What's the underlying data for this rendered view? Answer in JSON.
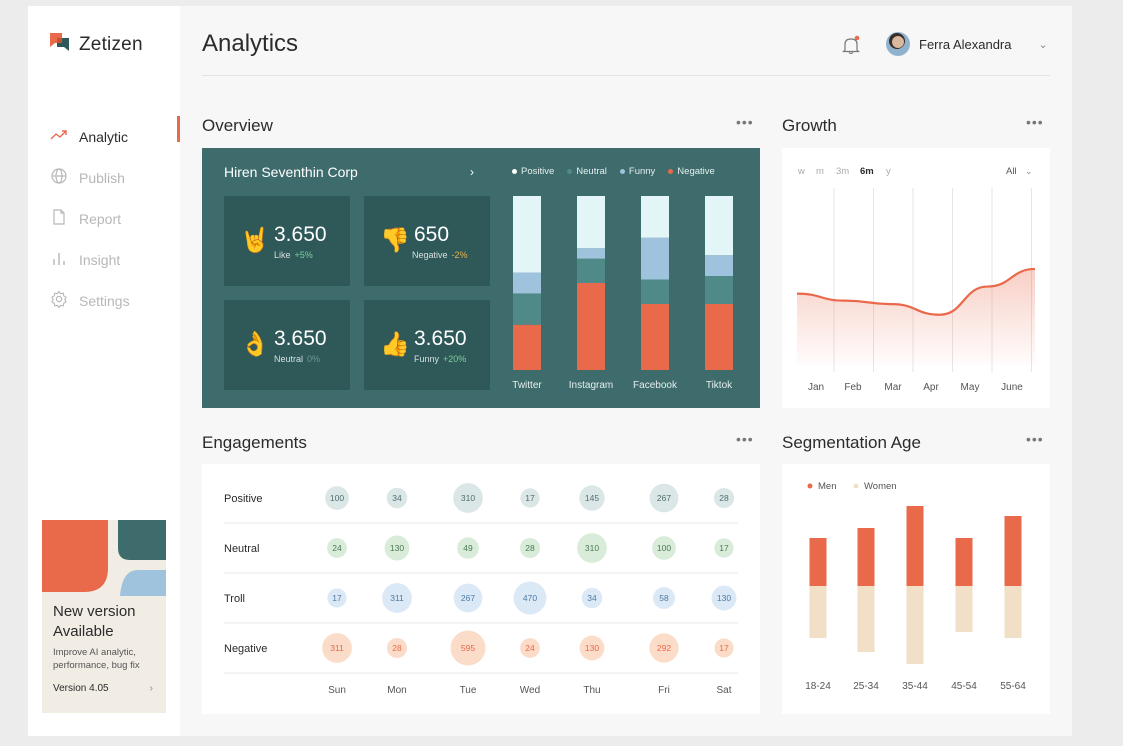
{
  "brand": {
    "name": "Zetizen"
  },
  "nav": [
    {
      "label": "Analytic",
      "icon": "trend-icon",
      "active": true
    },
    {
      "label": "Publish",
      "icon": "globe-icon",
      "active": false
    },
    {
      "label": "Report",
      "icon": "document-icon",
      "active": false
    },
    {
      "label": "Insight",
      "icon": "bar-chart-icon",
      "active": false
    },
    {
      "label": "Settings",
      "icon": "gear-icon",
      "active": false
    }
  ],
  "promo": {
    "title": "New version Available",
    "description": "Improve AI analytic, performance, bug fix",
    "version": "Version 4.05",
    "colors": {
      "orange": "#e9694b",
      "teal": "#3e6b6b",
      "blue": "#9fc3dc"
    }
  },
  "header": {
    "title": "Analytics",
    "user": "Ferra Alexandra",
    "notification_icon": "bell-icon"
  },
  "overview": {
    "title": "Overview",
    "more": "•••",
    "corp": "Hiren Seventhin Corp",
    "arrow": "›",
    "stats": [
      {
        "emoji": "🤘",
        "value": "3.650",
        "label": "Like",
        "change": "+5%",
        "tone": "up"
      },
      {
        "emoji": "👎",
        "value": "650",
        "label": "Negative",
        "change": "-2%",
        "tone": "warn"
      },
      {
        "emoji": "👌",
        "value": "3.650",
        "label": "Neutral",
        "change": "0%",
        "tone": "gray"
      },
      {
        "emoji": "👍",
        "value": "3.650",
        "label": "Funny",
        "change": "+20%",
        "tone": "up"
      }
    ],
    "legend": [
      {
        "label": "Positive",
        "color": "#ffffff"
      },
      {
        "label": "Neutral",
        "color": "#4f8a88"
      },
      {
        "label": "Funny",
        "color": "#9fc3dc"
      },
      {
        "label": "Negative",
        "color": "#e9694b"
      }
    ]
  },
  "chart_data": [
    {
      "type": "bar",
      "stacked": true,
      "categories": [
        "Twitter",
        "Instagram",
        "Facebook",
        "Tiktok"
      ],
      "series": [
        {
          "name": "Negative",
          "values": [
            26,
            50,
            38,
            38
          ]
        },
        {
          "name": "Neutral",
          "values": [
            18,
            14,
            14,
            16
          ]
        },
        {
          "name": "Funny",
          "values": [
            12,
            6,
            24,
            12
          ]
        },
        {
          "name": "Positive",
          "values": [
            44,
            30,
            24,
            34
          ]
        }
      ]
    },
    {
      "type": "area",
      "title": "Growth",
      "categories": [
        "Jan",
        "Feb",
        "Mar",
        "Apr",
        "May",
        "June"
      ],
      "values": [
        40,
        36,
        34,
        28,
        44,
        54
      ],
      "ylim": [
        0,
        100
      ],
      "ranges": [
        "w",
        "m",
        "3m",
        "6m",
        "y"
      ],
      "selected_range": "6m",
      "filter": "All"
    },
    {
      "type": "scatter",
      "title": "Engagements",
      "rows": [
        "Positive",
        "Neutral",
        "Troll",
        "Negative"
      ],
      "columns": [
        "Sun",
        "Mon",
        "Tue",
        "Wed",
        "Thu",
        "Fri",
        "Sat"
      ],
      "values": [
        [
          100,
          34,
          310,
          17,
          145,
          267,
          28
        ],
        [
          24,
          130,
          49,
          28,
          310,
          100,
          17
        ],
        [
          17,
          311,
          267,
          470,
          34,
          58,
          130
        ],
        [
          311,
          28,
          595,
          24,
          130,
          292,
          17
        ]
      ],
      "colors": {
        "Positive": [
          "#dae7e6",
          "#4f6f6e"
        ],
        "Neutral": [
          "#d8ecd9",
          "#4b7a55"
        ],
        "Troll": [
          "#dbe9f7",
          "#4d7aa1"
        ],
        "Negative": [
          "#fbdcc9",
          "#e9694b"
        ]
      }
    },
    {
      "type": "bar",
      "title": "Segmentation Age",
      "stacked": true,
      "categories": [
        "18-24",
        "25-34",
        "35-44",
        "45-54",
        "55-64"
      ],
      "series": [
        {
          "name": "Men",
          "values": [
            48,
            58,
            80,
            48,
            70
          ],
          "color": "#e9694b"
        },
        {
          "name": "Women",
          "values": [
            52,
            66,
            78,
            46,
            52
          ],
          "color": "#f1dfc7"
        }
      ]
    }
  ],
  "growth": {
    "title": "Growth",
    "more": "•••",
    "filter_chevron": "⌄"
  },
  "engagements": {
    "title": "Engagements",
    "more": "•••"
  },
  "segmentation": {
    "title": "Segmentation Age",
    "more": "•••",
    "legend": [
      "Men",
      "Women"
    ]
  }
}
